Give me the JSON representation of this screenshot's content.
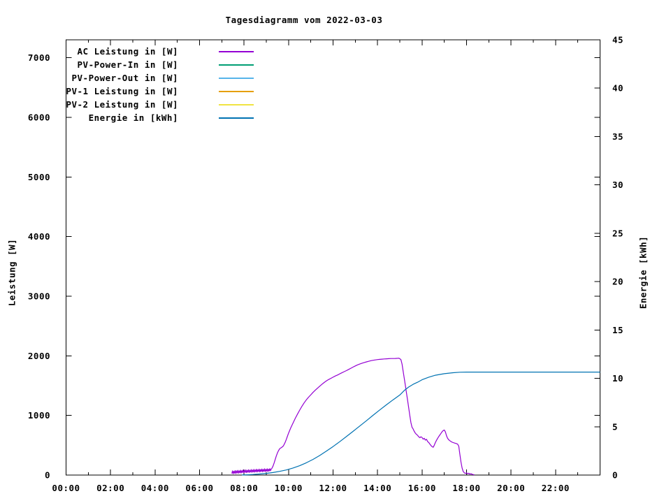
{
  "chart_data": {
    "type": "line",
    "title": "Tagesdiagramm vom 2022-03-03",
    "ylabel": "Leistung [W]",
    "y2label": "Energie [kWh]",
    "grid": false,
    "legend_position": "top-left-inside",
    "x_axis": {
      "range_hours": [
        0,
        24
      ],
      "major_tick_hours": [
        0,
        2,
        4,
        6,
        8,
        10,
        12,
        14,
        16,
        18,
        20,
        22
      ],
      "major_tick_labels": [
        "00:00",
        "02:00",
        "04:00",
        "06:00",
        "08:00",
        "10:00",
        "12:00",
        "14:00",
        "16:00",
        "18:00",
        "20:00",
        "22:00"
      ],
      "minor_tick_hours": [
        1,
        3,
        5,
        7,
        9,
        11,
        13,
        15,
        17,
        19,
        21,
        23
      ]
    },
    "y_axis": {
      "range": [
        0,
        7300
      ],
      "ticks": [
        0,
        1000,
        2000,
        3000,
        4000,
        5000,
        6000,
        7000
      ]
    },
    "y2_axis": {
      "range": [
        0,
        45
      ],
      "ticks": [
        0,
        5,
        10,
        15,
        20,
        25,
        30,
        35,
        40,
        45
      ]
    },
    "legend": [
      {
        "label": "AC Leistung in [W]",
        "color": "#9400D3",
        "series": "ac_power"
      },
      {
        "label": "PV-Power-In in [W]",
        "color": "#009E73",
        "series": "pv_power_in"
      },
      {
        "label": "PV-Power-Out in [W]",
        "color": "#56B4E9",
        "series": "pv_power_out"
      },
      {
        "label": "PV-1 Leistung in [W]",
        "color": "#E69F00",
        "series": "pv1_power"
      },
      {
        "label": "PV-2 Leistung in [W]",
        "color": "#F0E442",
        "series": "pv2_power"
      },
      {
        "label": "Energie in [kWh]",
        "color": "#0072B2",
        "series": "energy"
      }
    ],
    "series": {
      "ac_power": {
        "axis": "y1",
        "points": [
          [
            7.45,
            25
          ],
          [
            7.48,
            70
          ],
          [
            7.51,
            22
          ],
          [
            7.54,
            65
          ],
          [
            7.57,
            30
          ],
          [
            7.6,
            75
          ],
          [
            7.63,
            26
          ],
          [
            7.66,
            70
          ],
          [
            7.69,
            35
          ],
          [
            7.72,
            80
          ],
          [
            7.75,
            30
          ],
          [
            7.78,
            72
          ],
          [
            7.81,
            38
          ],
          [
            7.84,
            82
          ],
          [
            7.87,
            34
          ],
          [
            7.9,
            75
          ],
          [
            7.93,
            42
          ],
          [
            7.96,
            85
          ],
          [
            7.99,
            38
          ],
          [
            8.02,
            78
          ],
          [
            8.05,
            45
          ],
          [
            8.08,
            88
          ],
          [
            8.11,
            40
          ],
          [
            8.14,
            80
          ],
          [
            8.17,
            48
          ],
          [
            8.2,
            90
          ],
          [
            8.23,
            42
          ],
          [
            8.26,
            82
          ],
          [
            8.29,
            50
          ],
          [
            8.32,
            92
          ],
          [
            8.35,
            46
          ],
          [
            8.38,
            85
          ],
          [
            8.41,
            52
          ],
          [
            8.44,
            95
          ],
          [
            8.47,
            48
          ],
          [
            8.5,
            88
          ],
          [
            8.53,
            55
          ],
          [
            8.56,
            98
          ],
          [
            8.59,
            50
          ],
          [
            8.62,
            90
          ],
          [
            8.65,
            58
          ],
          [
            8.68,
            100
          ],
          [
            8.71,
            52
          ],
          [
            8.74,
            92
          ],
          [
            8.77,
            60
          ],
          [
            8.8,
            102
          ],
          [
            8.83,
            55
          ],
          [
            8.86,
            95
          ],
          [
            8.89,
            62
          ],
          [
            8.92,
            105
          ],
          [
            8.95,
            58
          ],
          [
            8.98,
            96
          ],
          [
            9.01,
            65
          ],
          [
            9.04,
            106
          ],
          [
            9.07,
            60
          ],
          [
            9.1,
            98
          ],
          [
            9.13,
            68
          ],
          [
            9.16,
            108
          ],
          [
            9.19,
            72
          ],
          [
            9.22,
            100
          ],
          [
            9.25,
            112
          ],
          [
            9.3,
            150
          ],
          [
            9.35,
            200
          ],
          [
            9.4,
            260
          ],
          [
            9.45,
            320
          ],
          [
            9.5,
            370
          ],
          [
            9.55,
            410
          ],
          [
            9.6,
            440
          ],
          [
            9.65,
            455
          ],
          [
            9.7,
            468
          ],
          [
            9.75,
            482
          ],
          [
            9.8,
            512
          ],
          [
            9.85,
            552
          ],
          [
            9.9,
            600
          ],
          [
            9.95,
            650
          ],
          [
            10,
            702
          ],
          [
            10.1,
            792
          ],
          [
            10.2,
            872
          ],
          [
            10.3,
            950
          ],
          [
            10.4,
            1022
          ],
          [
            10.5,
            1090
          ],
          [
            10.6,
            1152
          ],
          [
            10.7,
            1210
          ],
          [
            10.8,
            1262
          ],
          [
            10.9,
            1306
          ],
          [
            11,
            1346
          ],
          [
            11.1,
            1386
          ],
          [
            11.2,
            1422
          ],
          [
            11.3,
            1456
          ],
          [
            11.4,
            1490
          ],
          [
            11.5,
            1522
          ],
          [
            11.6,
            1552
          ],
          [
            11.7,
            1578
          ],
          [
            11.8,
            1602
          ],
          [
            11.9,
            1622
          ],
          [
            12,
            1642
          ],
          [
            12.1,
            1662
          ],
          [
            12.2,
            1678
          ],
          [
            12.3,
            1698
          ],
          [
            12.4,
            1716
          ],
          [
            12.5,
            1734
          ],
          [
            12.6,
            1752
          ],
          [
            12.7,
            1772
          ],
          [
            12.8,
            1792
          ],
          [
            12.9,
            1812
          ],
          [
            13,
            1830
          ],
          [
            13.1,
            1848
          ],
          [
            13.2,
            1862
          ],
          [
            13.3,
            1876
          ],
          [
            13.4,
            1888
          ],
          [
            13.5,
            1898
          ],
          [
            13.6,
            1908
          ],
          [
            13.7,
            1918
          ],
          [
            13.8,
            1925
          ],
          [
            13.9,
            1931
          ],
          [
            14,
            1937
          ],
          [
            14.1,
            1940
          ],
          [
            14.2,
            1944
          ],
          [
            14.3,
            1947
          ],
          [
            14.4,
            1950
          ],
          [
            14.5,
            1952
          ],
          [
            14.6,
            1954
          ],
          [
            14.7,
            1955
          ],
          [
            14.8,
            1956
          ],
          [
            14.9,
            1958
          ],
          [
            14.95,
            1960
          ],
          [
            15,
            1952
          ],
          [
            15.05,
            1936
          ],
          [
            15.1,
            1862
          ],
          [
            15.15,
            1740
          ],
          [
            15.2,
            1620
          ],
          [
            15.25,
            1500
          ],
          [
            15.3,
            1380
          ],
          [
            15.35,
            1258
          ],
          [
            15.4,
            1130
          ],
          [
            15.45,
            1000
          ],
          [
            15.5,
            880
          ],
          [
            15.55,
            802
          ],
          [
            15.6,
            772
          ],
          [
            15.65,
            732
          ],
          [
            15.7,
            702
          ],
          [
            15.75,
            682
          ],
          [
            15.8,
            665
          ],
          [
            15.85,
            642
          ],
          [
            15.9,
            626
          ],
          [
            15.95,
            642
          ],
          [
            16,
            630
          ],
          [
            16.05,
            602
          ],
          [
            16.1,
            616
          ],
          [
            16.15,
            586
          ],
          [
            16.2,
            600
          ],
          [
            16.25,
            562
          ],
          [
            16.3,
            546
          ],
          [
            16.35,
            520
          ],
          [
            16.4,
            496
          ],
          [
            16.45,
            476
          ],
          [
            16.5,
            466
          ],
          [
            16.55,
            500
          ],
          [
            16.6,
            546
          ],
          [
            16.65,
            582
          ],
          [
            16.7,
            616
          ],
          [
            16.75,
            646
          ],
          [
            16.8,
            672
          ],
          [
            16.85,
            700
          ],
          [
            16.9,
            726
          ],
          [
            16.95,
            746
          ],
          [
            17,
            756
          ],
          [
            17.05,
            722
          ],
          [
            17.1,
            656
          ],
          [
            17.15,
            616
          ],
          [
            17.2,
            592
          ],
          [
            17.25,
            576
          ],
          [
            17.3,
            562
          ],
          [
            17.35,
            552
          ],
          [
            17.4,
            545
          ],
          [
            17.45,
            538
          ],
          [
            17.5,
            532
          ],
          [
            17.55,
            526
          ],
          [
            17.6,
            518
          ],
          [
            17.65,
            482
          ],
          [
            17.7,
            350
          ],
          [
            17.75,
            220
          ],
          [
            17.8,
            120
          ],
          [
            17.85,
            60
          ],
          [
            17.9,
            38
          ],
          [
            17.95,
            28
          ],
          [
            18,
            36
          ],
          [
            18.05,
            22
          ],
          [
            18.1,
            30
          ],
          [
            18.15,
            16
          ],
          [
            18.2,
            24
          ],
          [
            18.25,
            12
          ],
          [
            18.3,
            8
          ],
          [
            18.35,
            4
          ]
        ]
      },
      "pv_power_in": {
        "axis": "y1",
        "points": []
      },
      "pv_power_out": {
        "axis": "y1",
        "points": []
      },
      "pv1_power": {
        "axis": "y1",
        "points": []
      },
      "pv2_power": {
        "axis": "y1",
        "points": []
      },
      "energy": {
        "axis": "y2",
        "points": [
          [
            7.9,
            0.01
          ],
          [
            8.15,
            0.03
          ],
          [
            8.4,
            0.06
          ],
          [
            8.7,
            0.11
          ],
          [
            9,
            0.17
          ],
          [
            9.3,
            0.26
          ],
          [
            9.6,
            0.38
          ],
          [
            9.9,
            0.53
          ],
          [
            10.2,
            0.73
          ],
          [
            10.5,
            0.97
          ],
          [
            10.8,
            1.27
          ],
          [
            11.1,
            1.62
          ],
          [
            11.4,
            2.02
          ],
          [
            11.7,
            2.47
          ],
          [
            12,
            2.95
          ],
          [
            12.3,
            3.45
          ],
          [
            12.6,
            3.98
          ],
          [
            12.9,
            4.52
          ],
          [
            13.2,
            5.07
          ],
          [
            13.5,
            5.62
          ],
          [
            13.8,
            6.18
          ],
          [
            14.1,
            6.73
          ],
          [
            14.4,
            7.27
          ],
          [
            14.7,
            7.79
          ],
          [
            15,
            8.28
          ],
          [
            15.2,
            8.75
          ],
          [
            15.4,
            9.1
          ],
          [
            15.6,
            9.38
          ],
          [
            15.8,
            9.6
          ],
          [
            16,
            9.85
          ],
          [
            16.3,
            10.12
          ],
          [
            16.6,
            10.32
          ],
          [
            17,
            10.48
          ],
          [
            17.4,
            10.58
          ],
          [
            17.7,
            10.63
          ],
          [
            18,
            10.65
          ],
          [
            24,
            10.65
          ]
        ]
      }
    }
  }
}
